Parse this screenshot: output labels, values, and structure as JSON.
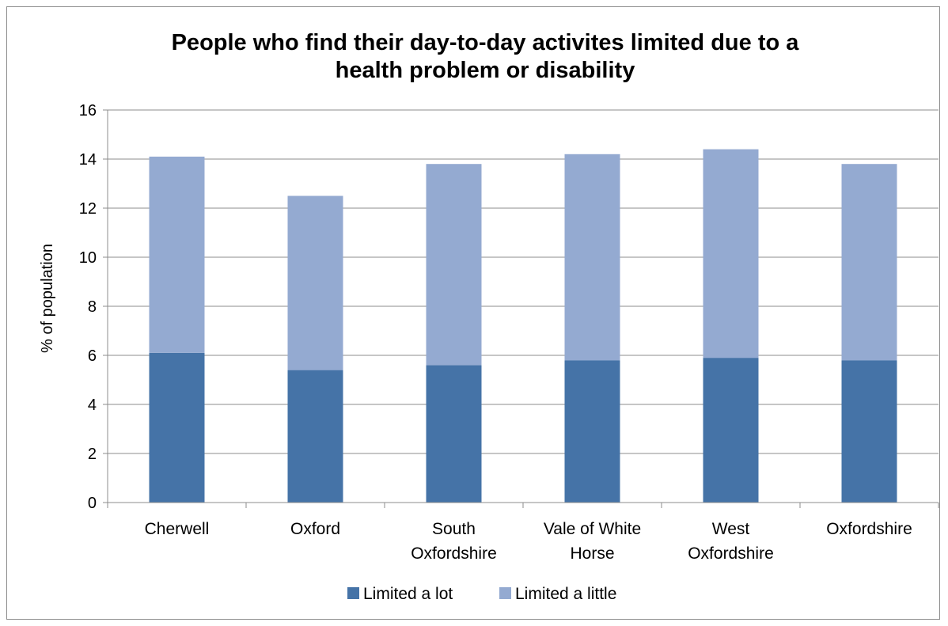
{
  "chart_data": {
    "type": "bar",
    "stacked": true,
    "title": "People who find their day-to-day activites limited due to a health problem or disability",
    "title_lines": [
      "People who find their day-to-day activites limited due to a",
      "health problem or disability"
    ],
    "xlabel": "",
    "ylabel": "% of population",
    "ylim": [
      0,
      16
    ],
    "yticks": [
      0,
      2,
      4,
      6,
      8,
      10,
      12,
      14,
      16
    ],
    "grid": true,
    "legend_position": "bottom",
    "categories": [
      "Cherwell",
      "Oxford",
      "South Oxfordshire",
      "Vale of White Horse",
      "West Oxfordshire",
      "Oxfordshire"
    ],
    "category_lines": [
      [
        "Cherwell"
      ],
      [
        "Oxford"
      ],
      [
        "South",
        "Oxfordshire"
      ],
      [
        "Vale of White",
        "Horse"
      ],
      [
        "West",
        "Oxfordshire"
      ],
      [
        "Oxfordshire"
      ]
    ],
    "series": [
      {
        "name": "Limited a lot",
        "color": "#4573a7",
        "values": [
          6.1,
          5.4,
          5.6,
          5.8,
          5.9,
          5.8
        ]
      },
      {
        "name": "Limited a little",
        "color": "#94aad1",
        "values": [
          8.0,
          7.1,
          8.2,
          8.4,
          8.5,
          8.0
        ]
      }
    ]
  }
}
